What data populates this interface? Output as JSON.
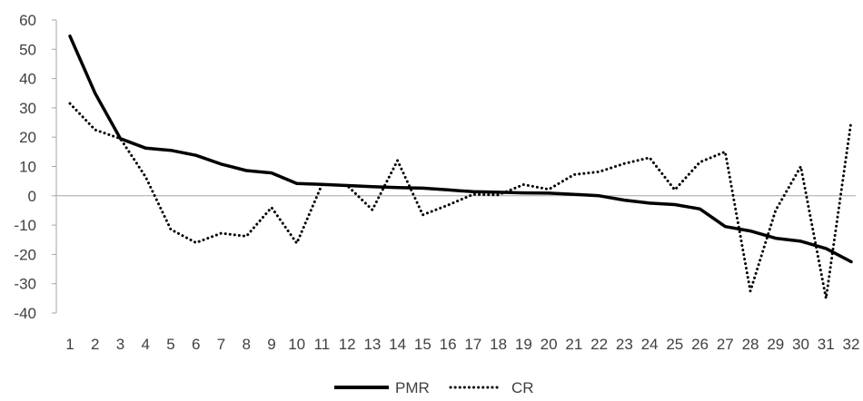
{
  "chart_data": {
    "type": "line",
    "title": "",
    "xlabel": "",
    "ylabel": "",
    "ylim": [
      -40,
      60
    ],
    "yticks": [
      60,
      50,
      40,
      30,
      20,
      10,
      0,
      -10,
      -20,
      -30,
      -40
    ],
    "categories": [
      "1",
      "2",
      "3",
      "4",
      "5",
      "6",
      "7",
      "8",
      "9",
      "10",
      "11",
      "12",
      "13",
      "14",
      "15",
      "16",
      "17",
      "18",
      "19",
      "20",
      "21",
      "22",
      "23",
      "24",
      "25",
      "26",
      "27",
      "28",
      "29",
      "30",
      "31",
      "32"
    ],
    "grid": false,
    "legend_position": "bottom",
    "series": [
      {
        "name": "PMR",
        "style": "solid",
        "color": "#000000",
        "values": [
          54.5,
          35,
          19.5,
          16.3,
          15.5,
          13.8,
          10.8,
          8.6,
          7.8,
          4.2,
          3.9,
          3.5,
          3.1,
          2.8,
          2.6,
          2.0,
          1.4,
          1.2,
          1.0,
          0.9,
          0.5,
          0.0,
          -1.5,
          -2.5,
          -3.0,
          -4.5,
          -10.5,
          -12,
          -14.5,
          -15.5,
          -18,
          -22.5
        ]
      },
      {
        "name": "CR",
        "style": "dotted",
        "color": "#000000",
        "values": [
          31.5,
          22.5,
          19.5,
          6.5,
          -11.5,
          -16,
          -12.8,
          -13.8,
          -4,
          -16.2,
          3.8,
          3.5,
          -4.8,
          12,
          -6.5,
          -3.2,
          0.5,
          0.3,
          3.8,
          2.2,
          7.2,
          8.2,
          11,
          13,
          2,
          11.5,
          15,
          -32.5,
          -5,
          10,
          -35,
          25.5
        ]
      }
    ]
  }
}
